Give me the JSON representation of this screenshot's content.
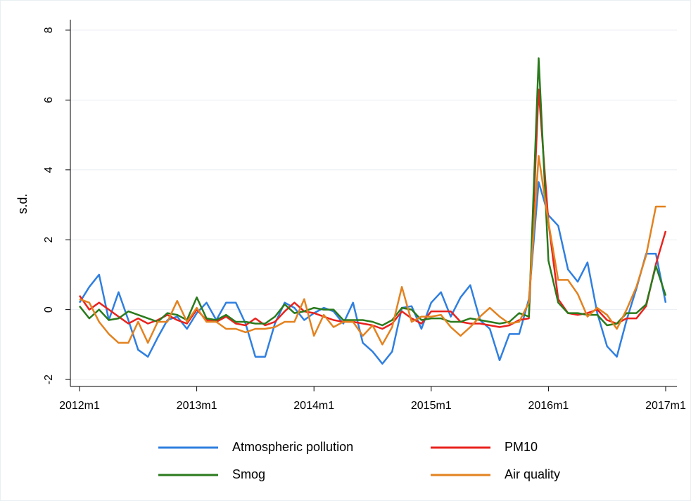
{
  "chart_data": {
    "type": "line",
    "ylabel": "s.d.",
    "categories": [
      "2012m1",
      null,
      null,
      null,
      null,
      null,
      null,
      null,
      null,
      null,
      null,
      null,
      "2013m1",
      null,
      null,
      null,
      null,
      null,
      null,
      null,
      null,
      null,
      null,
      null,
      "2014m1",
      null,
      null,
      null,
      null,
      null,
      null,
      null,
      null,
      null,
      null,
      null,
      "2015m1",
      null,
      null,
      null,
      null,
      null,
      null,
      null,
      null,
      null,
      null,
      null,
      "2016m1",
      null,
      null,
      null,
      null,
      null,
      null,
      null,
      null,
      null,
      null,
      null,
      "2017m1"
    ],
    "series": [
      {
        "name": "Atmospheric pollution",
        "color": "#2f7fe0",
        "values": [
          0.2,
          0.65,
          1.0,
          -0.3,
          0.5,
          -0.3,
          -1.15,
          -1.35,
          -0.8,
          -0.3,
          -0.2,
          -0.55,
          -0.1,
          0.2,
          -0.3,
          0.2,
          0.2,
          -0.4,
          -1.35,
          -1.35,
          -0.4,
          0.2,
          0.05,
          -0.3,
          -0.1,
          0.05,
          -0.05,
          -0.4,
          0.2,
          -0.95,
          -1.2,
          -1.55,
          -1.2,
          0.05,
          0.1,
          -0.55,
          0.2,
          0.5,
          -0.2,
          0.35,
          0.7,
          -0.3,
          -0.55,
          -1.45,
          -0.7,
          -0.7,
          0.3,
          3.65,
          2.7,
          2.4,
          1.15,
          0.8,
          1.35,
          -0.1,
          -1.05,
          -1.35,
          -0.3,
          0.6,
          1.6,
          1.6,
          0.2
        ]
      },
      {
        "name": "PM10",
        "color": "#e8231e",
        "values": [
          0.4,
          0.0,
          0.2,
          0.0,
          -0.2,
          -0.4,
          -0.25,
          -0.4,
          -0.3,
          -0.15,
          -0.3,
          -0.4,
          0.0,
          -0.3,
          -0.35,
          -0.2,
          -0.4,
          -0.45,
          -0.25,
          -0.45,
          -0.35,
          -0.05,
          0.2,
          -0.05,
          -0.1,
          -0.2,
          -0.3,
          -0.35,
          -0.35,
          -0.4,
          -0.45,
          -0.55,
          -0.4,
          -0.05,
          -0.25,
          -0.4,
          -0.05,
          -0.05,
          -0.05,
          -0.35,
          -0.4,
          -0.4,
          -0.45,
          -0.5,
          -0.45,
          -0.3,
          -0.25,
          6.3,
          2.5,
          0.3,
          -0.1,
          -0.15,
          -0.1,
          0.0,
          -0.3,
          -0.4,
          -0.25,
          -0.25,
          0.1,
          1.3,
          2.25
        ]
      },
      {
        "name": "Smog",
        "color": "#2a7a1c",
        "values": [
          0.1,
          -0.25,
          0.0,
          -0.3,
          -0.25,
          -0.05,
          -0.15,
          -0.25,
          -0.35,
          -0.1,
          -0.15,
          -0.3,
          0.35,
          -0.25,
          -0.3,
          -0.15,
          -0.35,
          -0.35,
          -0.4,
          -0.4,
          -0.2,
          0.15,
          -0.1,
          -0.05,
          0.05,
          0.0,
          0.0,
          -0.3,
          -0.3,
          -0.3,
          -0.35,
          -0.45,
          -0.3,
          0.05,
          0.0,
          -0.3,
          -0.25,
          -0.25,
          -0.35,
          -0.35,
          -0.25,
          -0.3,
          -0.35,
          -0.4,
          -0.35,
          -0.1,
          -0.2,
          7.2,
          1.4,
          0.2,
          -0.1,
          -0.1,
          -0.15,
          -0.15,
          -0.45,
          -0.4,
          -0.1,
          -0.1,
          0.15,
          1.25,
          0.4
        ]
      },
      {
        "name": "Air quality",
        "color": "#e3821f",
        "values": [
          0.3,
          0.2,
          -0.35,
          -0.7,
          -0.95,
          -0.95,
          -0.35,
          -0.95,
          -0.35,
          -0.35,
          0.25,
          -0.35,
          0.05,
          -0.35,
          -0.35,
          -0.55,
          -0.55,
          -0.65,
          -0.55,
          -0.55,
          -0.5,
          -0.35,
          -0.35,
          0.3,
          -0.75,
          -0.15,
          -0.5,
          -0.35,
          -0.35,
          -0.75,
          -0.45,
          -1.0,
          -0.5,
          0.65,
          -0.35,
          -0.2,
          -0.2,
          -0.15,
          -0.5,
          -0.75,
          -0.5,
          -0.2,
          0.05,
          -0.2,
          -0.4,
          -0.35,
          0.2,
          4.4,
          2.5,
          0.85,
          0.85,
          0.45,
          -0.2,
          0.05,
          -0.15,
          -0.55,
          0.0,
          0.65,
          1.55,
          2.95,
          2.95
        ]
      }
    ],
    "ylim": [
      -2.2,
      8.3
    ],
    "yticks": [
      -2,
      0,
      2,
      4,
      6,
      8
    ],
    "grid": true,
    "legend": "bottom"
  }
}
